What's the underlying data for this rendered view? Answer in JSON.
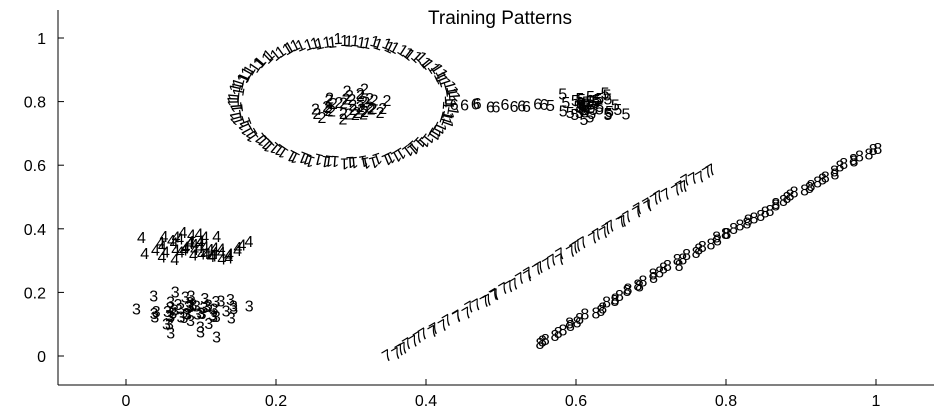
{
  "chart_data": {
    "type": "scatter",
    "title": "Training Patterns",
    "xlabel": "",
    "ylabel": "",
    "xlim": [
      -0.08,
      1.08
    ],
    "ylim": [
      -0.1,
      1.08
    ],
    "x_ticks": [
      0,
      0.2,
      0.4,
      0.6,
      0.8,
      1
    ],
    "y_ticks": [
      0,
      0.2,
      0.4,
      0.6,
      0.8,
      1
    ],
    "x_tick_labels": [
      "0",
      "0.2",
      "0.4",
      "0.6",
      "0.8",
      "1"
    ],
    "y_tick_labels": [
      "0",
      "0.2",
      "0.4",
      "0.6",
      "0.8",
      "1"
    ],
    "grid": false,
    "marker_style": "class digit drawn as text",
    "series": [
      {
        "label": "1",
        "shape": "circle",
        "center": [
          0.29,
          0.8
        ],
        "radius": [
          0.145,
          0.195
        ],
        "count": 110
      },
      {
        "label": "2",
        "shape": "cluster",
        "center": [
          0.3,
          0.79
        ],
        "spread": [
          0.022,
          0.022
        ],
        "count": 40
      },
      {
        "label": "3",
        "shape": "cluster",
        "center": [
          0.09,
          0.14
        ],
        "spread": [
          0.03,
          0.03
        ],
        "count": 55
      },
      {
        "label": "4",
        "shape": "cluster",
        "center": [
          0.09,
          0.35
        ],
        "spread": [
          0.03,
          0.025
        ],
        "count": 50
      },
      {
        "label": "5",
        "shape": "cluster",
        "center": [
          0.615,
          0.79
        ],
        "spread": [
          0.02,
          0.018
        ],
        "count": 45
      },
      {
        "label": "6",
        "shape": "line",
        "start": [
          0.44,
          0.79
        ],
        "end": [
          0.56,
          0.79
        ],
        "count": 12
      },
      {
        "label": "7",
        "shape": "line",
        "start": [
          0.35,
          0.0
        ],
        "end": [
          0.78,
          0.59
        ],
        "count": 60
      },
      {
        "label": "8",
        "shape": "line",
        "start": [
          0.55,
          0.04
        ],
        "end": [
          1.0,
          0.66
        ],
        "count": 70
      }
    ],
    "color": "#000000"
  }
}
